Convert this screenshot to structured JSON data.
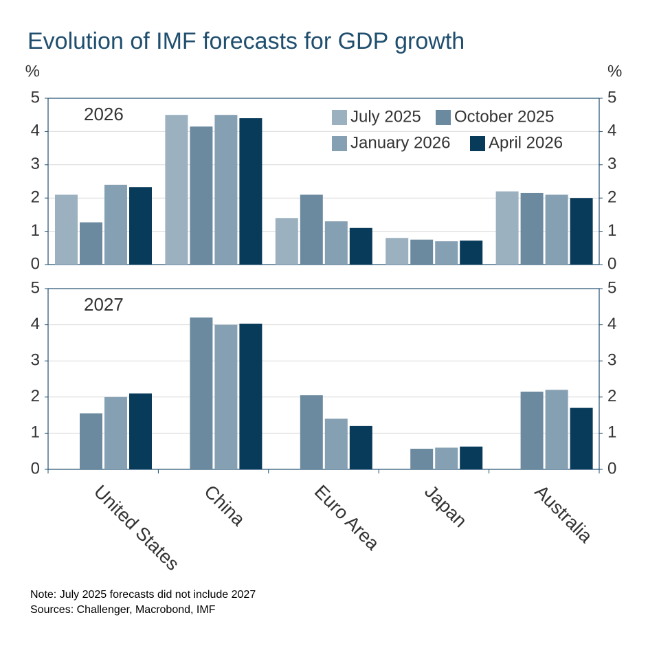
{
  "title": "Evolution of IMF forecasts for GDP growth",
  "notes": [
    "Note: July 2025 forecasts did not include 2027",
    "Sources: Challenger, Macrobond, IMF"
  ],
  "chart_data": [
    {
      "type": "bar",
      "label": "2026",
      "ylabel": "%",
      "ylim": [
        0,
        5
      ],
      "yticks": [
        0,
        1,
        2,
        3,
        4,
        5
      ],
      "grid": true,
      "series": [
        {
          "name": "July 2025",
          "color": "#9cb1bf",
          "values": [
            2.1,
            4.5,
            1.4,
            0.8,
            2.2
          ]
        },
        {
          "name": "October 2025",
          "color": "#6b8a9f",
          "values": [
            1.27,
            4.15,
            2.1,
            0.75,
            2.15
          ]
        },
        {
          "name": "January 2026",
          "color": "#86a0b3",
          "values": [
            2.4,
            4.5,
            1.3,
            0.7,
            2.1
          ]
        },
        {
          "name": "April 2026",
          "color": "#083a5a",
          "values": [
            2.33,
            4.4,
            1.1,
            0.72,
            2.0
          ]
        }
      ]
    },
    {
      "type": "bar",
      "label": "2027",
      "ylim": [
        0,
        5
      ],
      "yticks": [
        0,
        1,
        2,
        3,
        4,
        5
      ],
      "grid": true,
      "categories": [
        "United States",
        "China",
        "Euro Area",
        "Japan",
        "Australia"
      ],
      "series": [
        {
          "color": "#9cb1bf",
          "values": [
            null,
            null,
            null,
            null,
            null
          ]
        },
        {
          "color": "#6b8a9f",
          "values": [
            1.55,
            4.2,
            2.05,
            0.57,
            2.15
          ]
        },
        {
          "color": "#86a0b3",
          "values": [
            2.0,
            4.0,
            1.4,
            0.6,
            2.2
          ]
        },
        {
          "color": "#083a5a",
          "values": [
            2.1,
            4.03,
            1.2,
            0.63,
            1.7
          ]
        }
      ]
    }
  ]
}
